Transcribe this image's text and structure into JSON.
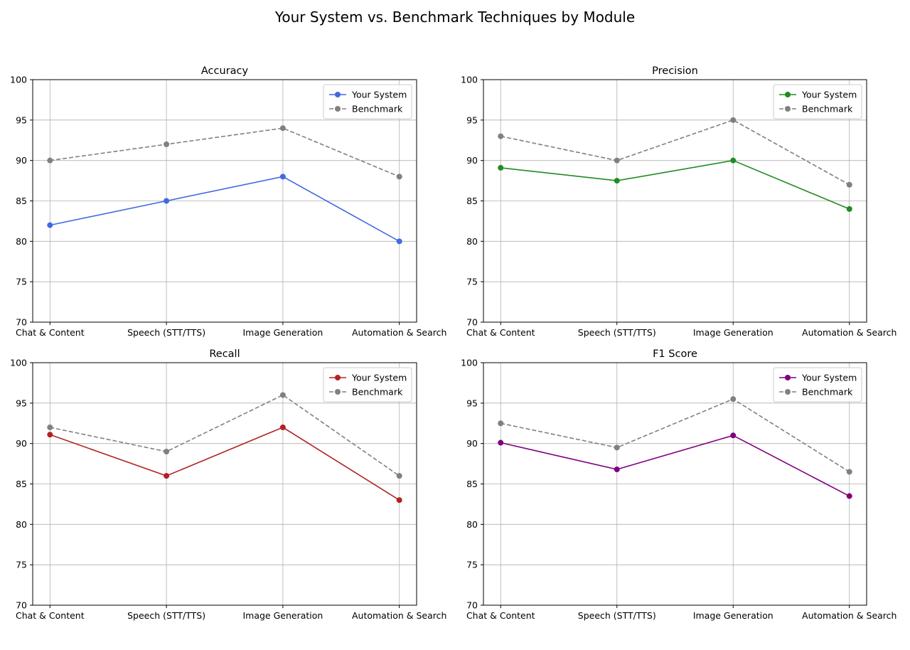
{
  "figure": {
    "title": "Your System vs. Benchmark Techniques by Module"
  },
  "chart_data": [
    {
      "type": "line",
      "title": "Accuracy",
      "categories": [
        "Chat & Content",
        "Speech (STT/TTS)",
        "Image Generation",
        "Automation & Search"
      ],
      "ylim": [
        70,
        100
      ],
      "yticks": [
        70,
        75,
        80,
        85,
        90,
        95,
        100
      ],
      "grid": true,
      "legend": "upper right",
      "series": [
        {
          "name": "Your System",
          "values": [
            82,
            85,
            88,
            80
          ],
          "color": "#4169e1",
          "style": "solid"
        },
        {
          "name": "Benchmark",
          "values": [
            90,
            92,
            94,
            88
          ],
          "color": "#808080",
          "style": "dashed"
        }
      ]
    },
    {
      "type": "line",
      "title": "Precision",
      "categories": [
        "Chat & Content",
        "Speech (STT/TTS)",
        "Image Generation",
        "Automation & Search"
      ],
      "ylim": [
        70,
        100
      ],
      "yticks": [
        70,
        75,
        80,
        85,
        90,
        95,
        100
      ],
      "grid": true,
      "legend": "upper right",
      "series": [
        {
          "name": "Your System",
          "values": [
            89.1,
            87.5,
            90,
            84
          ],
          "color": "#228b22",
          "style": "solid"
        },
        {
          "name": "Benchmark",
          "values": [
            93,
            90,
            95,
            87
          ],
          "color": "#808080",
          "style": "dashed"
        }
      ]
    },
    {
      "type": "line",
      "title": "Recall",
      "categories": [
        "Chat & Content",
        "Speech (STT/TTS)",
        "Image Generation",
        "Automation & Search"
      ],
      "ylim": [
        70,
        100
      ],
      "yticks": [
        70,
        75,
        80,
        85,
        90,
        95,
        100
      ],
      "grid": true,
      "legend": "upper right",
      "series": [
        {
          "name": "Your System",
          "values": [
            91.1,
            86,
            92,
            83
          ],
          "color": "#b22222",
          "style": "solid"
        },
        {
          "name": "Benchmark",
          "values": [
            92,
            89,
            96,
            86
          ],
          "color": "#808080",
          "style": "dashed"
        }
      ]
    },
    {
      "type": "line",
      "title": "F1 Score",
      "categories": [
        "Chat & Content",
        "Speech (STT/TTS)",
        "Image Generation",
        "Automation & Search"
      ],
      "ylim": [
        70,
        100
      ],
      "yticks": [
        70,
        75,
        80,
        85,
        90,
        95,
        100
      ],
      "grid": true,
      "legend": "upper right",
      "series": [
        {
          "name": "Your System",
          "values": [
            90.1,
            86.8,
            91,
            83.5
          ],
          "color": "#800080",
          "style": "solid"
        },
        {
          "name": "Benchmark",
          "values": [
            92.5,
            89.5,
            95.5,
            86.5
          ],
          "color": "#808080",
          "style": "dashed"
        }
      ]
    }
  ]
}
